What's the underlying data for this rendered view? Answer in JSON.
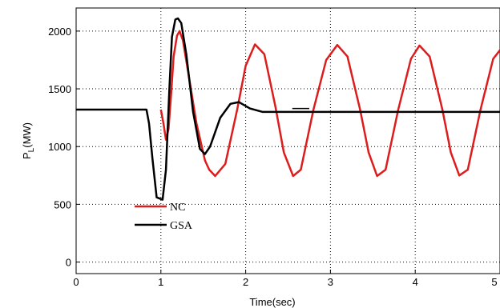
{
  "chart_data": {
    "type": "line",
    "title": "",
    "xlabel": "Time(sec)",
    "ylabel": "P",
    "ylabel_sub": "L",
    "ylabel_unit": "(MW)",
    "xlim": [
      0,
      5
    ],
    "ylim": [
      -100,
      2200
    ],
    "xticks": [
      0,
      1,
      2,
      3,
      4,
      5
    ],
    "yticks": [
      0,
      500,
      1000,
      1500,
      2000
    ],
    "grid": true,
    "legend_position": "lower-left",
    "series": [
      {
        "name": "NC",
        "color": "#dd1c1c",
        "points": [
          [
            1.0,
            1320
          ],
          [
            1.03,
            1200
          ],
          [
            1.06,
            1060
          ],
          [
            1.09,
            1150
          ],
          [
            1.12,
            1450
          ],
          [
            1.15,
            1780
          ],
          [
            1.19,
            1960
          ],
          [
            1.22,
            2000
          ],
          [
            1.26,
            1920
          ],
          [
            1.32,
            1650
          ],
          [
            1.42,
            1200
          ],
          [
            1.52,
            880
          ],
          [
            1.57,
            800
          ],
          [
            1.64,
            745
          ],
          [
            1.76,
            850
          ],
          [
            1.9,
            1320
          ],
          [
            2.0,
            1700
          ],
          [
            2.11,
            1885
          ],
          [
            2.22,
            1800
          ],
          [
            2.35,
            1350
          ],
          [
            2.45,
            950
          ],
          [
            2.56,
            745
          ],
          [
            2.65,
            800
          ],
          [
            2.8,
            1320
          ],
          [
            2.95,
            1750
          ],
          [
            3.08,
            1880
          ],
          [
            3.2,
            1780
          ],
          [
            3.35,
            1320
          ],
          [
            3.45,
            950
          ],
          [
            3.55,
            745
          ],
          [
            3.65,
            800
          ],
          [
            3.8,
            1320
          ],
          [
            3.95,
            1760
          ],
          [
            4.05,
            1875
          ],
          [
            4.17,
            1780
          ],
          [
            4.32,
            1320
          ],
          [
            4.42,
            950
          ],
          [
            4.52,
            750
          ],
          [
            4.62,
            800
          ],
          [
            4.77,
            1320
          ],
          [
            4.92,
            1760
          ],
          [
            5.0,
            1835
          ]
        ]
      },
      {
        "name": "GSA",
        "color": "#000000",
        "points": [
          [
            0.0,
            1320
          ],
          [
            0.83,
            1320
          ],
          [
            0.86,
            1200
          ],
          [
            0.9,
            900
          ],
          [
            0.95,
            560
          ],
          [
            1.02,
            540
          ],
          [
            1.06,
            800
          ],
          [
            1.1,
            1500
          ],
          [
            1.13,
            1950
          ],
          [
            1.17,
            2100
          ],
          [
            1.2,
            2110
          ],
          [
            1.24,
            2070
          ],
          [
            1.3,
            1800
          ],
          [
            1.38,
            1300
          ],
          [
            1.46,
            980
          ],
          [
            1.52,
            935
          ],
          [
            1.58,
            1000
          ],
          [
            1.7,
            1250
          ],
          [
            1.82,
            1370
          ],
          [
            1.92,
            1385
          ],
          [
            2.05,
            1330
          ],
          [
            2.2,
            1300
          ],
          [
            2.4,
            1300
          ],
          [
            5.0,
            1300
          ]
        ]
      }
    ],
    "annotations": [
      {
        "type": "segment",
        "x1": 2.55,
        "x2": 2.75,
        "y": 1330,
        "color": "#000000"
      }
    ]
  }
}
